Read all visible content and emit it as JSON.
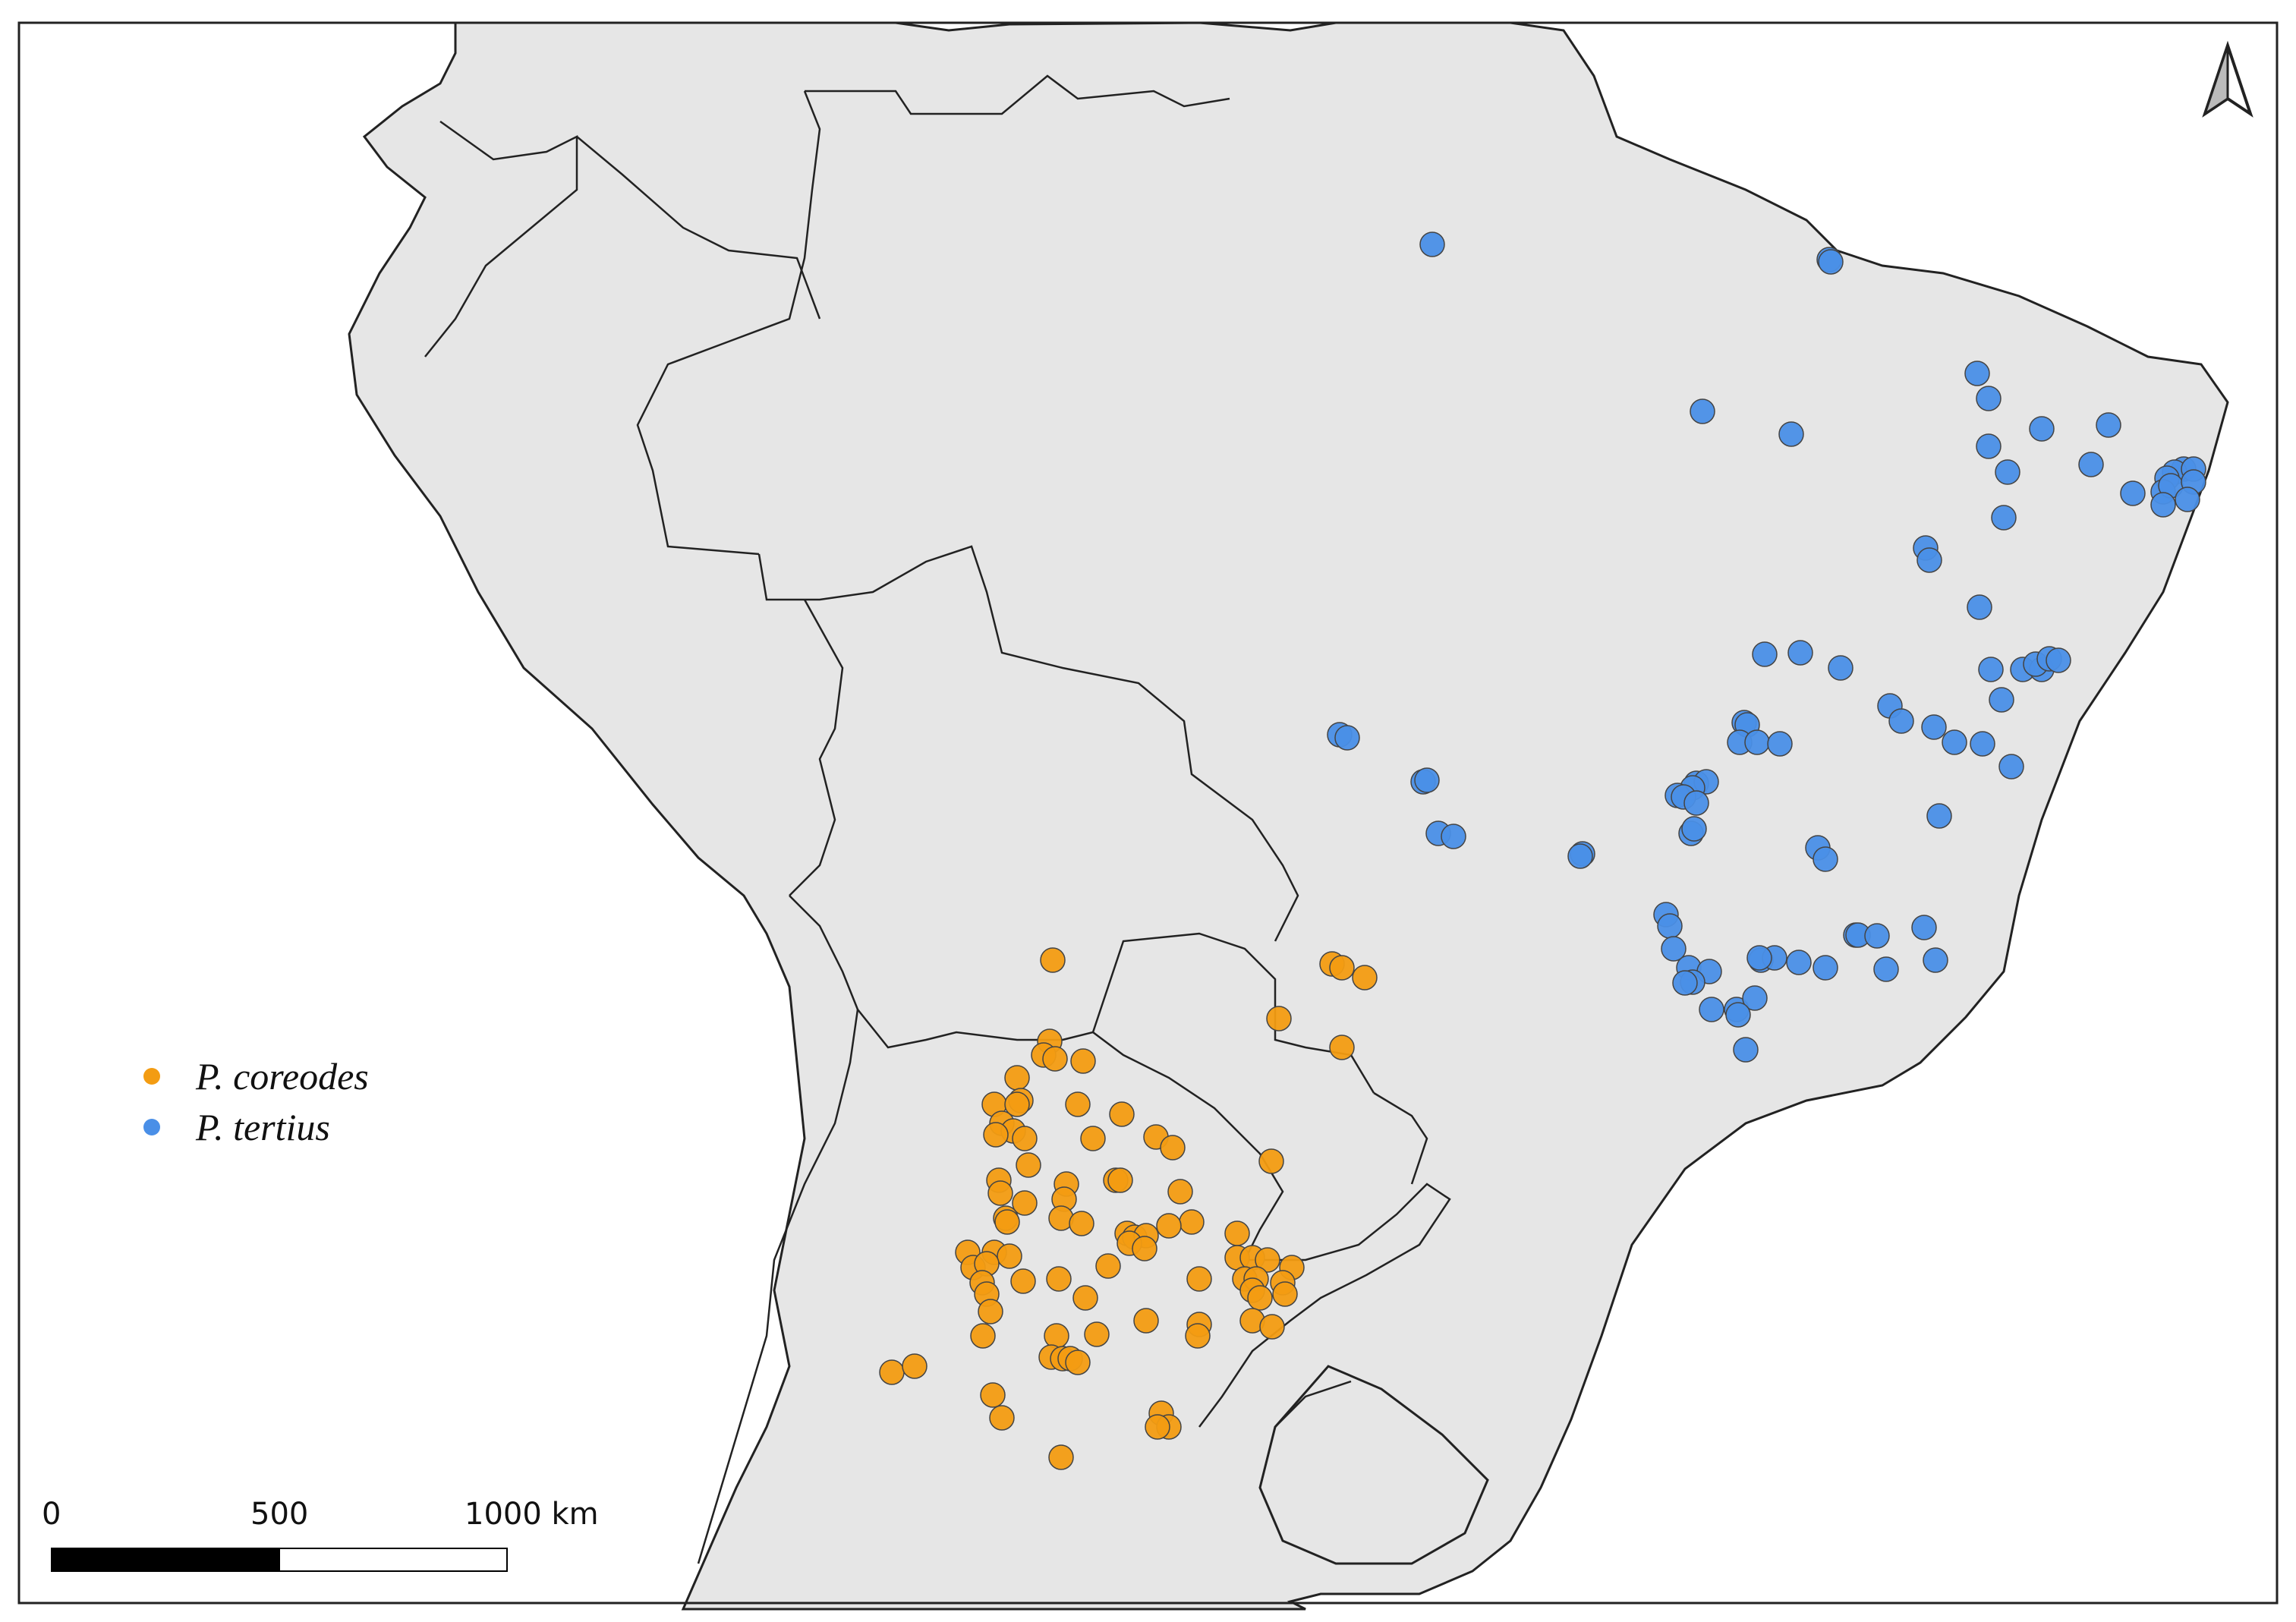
{
  "legend": {
    "items": [
      {
        "label": "P. coreodes",
        "color": "#f39c12"
      },
      {
        "label": "P. tertius",
        "color": "#4a8fe7"
      }
    ]
  },
  "scale_bar": {
    "labels": [
      "0",
      "500",
      "1000 km"
    ]
  },
  "north_arrow": {
    "icon": "north-arrow-icon"
  },
  "colors": {
    "land": "#e6e6e6",
    "border": "#222222",
    "coreodes": "#f39c12",
    "tertius": "#4a8fe7"
  }
}
